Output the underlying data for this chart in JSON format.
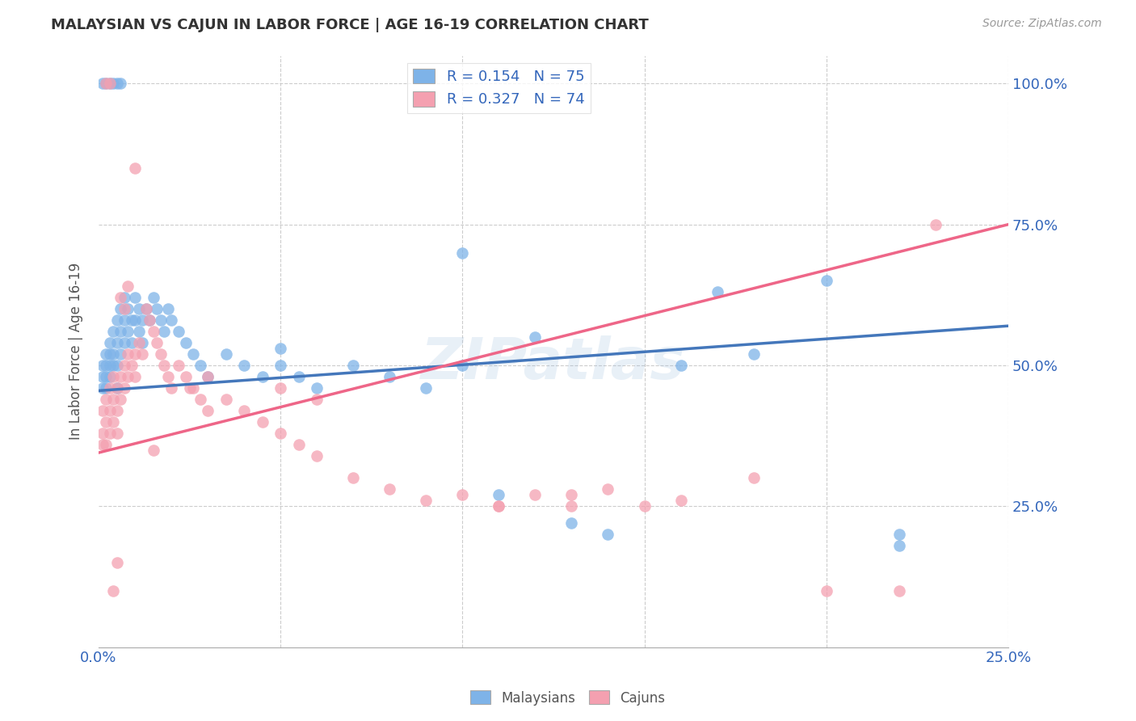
{
  "title": "MALAYSIAN VS CAJUN IN LABOR FORCE | AGE 16-19 CORRELATION CHART",
  "source": "Source: ZipAtlas.com",
  "ylabel": "In Labor Force | Age 16-19",
  "xlim": [
    0.0,
    0.25
  ],
  "ylim": [
    0.0,
    1.05
  ],
  "x_ticks": [
    0.0,
    0.05,
    0.1,
    0.15,
    0.2,
    0.25
  ],
  "y_ticks": [
    0.0,
    0.25,
    0.5,
    0.75,
    1.0
  ],
  "x_tick_labels": [
    "0.0%",
    "",
    "",
    "",
    "",
    "25.0%"
  ],
  "y_tick_labels_right": [
    "",
    "25.0%",
    "50.0%",
    "75.0%",
    "100.0%"
  ],
  "malaysian_R": 0.154,
  "malaysian_N": 75,
  "cajun_R": 0.327,
  "cajun_N": 74,
  "blue_color": "#7EB3E8",
  "pink_color": "#F4A0B0",
  "blue_line_color": "#4477BB",
  "pink_line_color": "#EE6688",
  "watermark": "ZIPatlas",
  "mal_x": [
    0.001,
    0.001,
    0.001,
    0.002,
    0.002,
    0.002,
    0.002,
    0.003,
    0.003,
    0.003,
    0.003,
    0.004,
    0.004,
    0.004,
    0.005,
    0.005,
    0.005,
    0.005,
    0.006,
    0.006,
    0.006,
    0.007,
    0.007,
    0.007,
    0.008,
    0.008,
    0.009,
    0.009,
    0.01,
    0.01,
    0.011,
    0.011,
    0.012,
    0.012,
    0.013,
    0.014,
    0.015,
    0.016,
    0.017,
    0.018,
    0.019,
    0.02,
    0.022,
    0.024,
    0.026,
    0.028,
    0.03,
    0.035,
    0.04,
    0.045,
    0.05,
    0.055,
    0.06,
    0.07,
    0.08,
    0.09,
    0.1,
    0.11,
    0.12,
    0.13,
    0.14,
    0.16,
    0.18,
    0.2,
    0.22,
    0.001,
    0.002,
    0.003,
    0.004,
    0.005,
    0.006,
    0.05,
    0.1,
    0.22,
    0.17
  ],
  "mal_y": [
    0.5,
    0.48,
    0.46,
    0.52,
    0.5,
    0.48,
    0.46,
    0.54,
    0.52,
    0.5,
    0.48,
    0.56,
    0.52,
    0.5,
    0.58,
    0.54,
    0.5,
    0.46,
    0.6,
    0.56,
    0.52,
    0.62,
    0.58,
    0.54,
    0.6,
    0.56,
    0.58,
    0.54,
    0.62,
    0.58,
    0.6,
    0.56,
    0.58,
    0.54,
    0.6,
    0.58,
    0.62,
    0.6,
    0.58,
    0.56,
    0.6,
    0.58,
    0.56,
    0.54,
    0.52,
    0.5,
    0.48,
    0.52,
    0.5,
    0.48,
    0.5,
    0.48,
    0.46,
    0.5,
    0.48,
    0.46,
    0.5,
    0.27,
    0.55,
    0.22,
    0.2,
    0.5,
    0.52,
    0.65,
    0.2,
    1.0,
    1.0,
    1.0,
    1.0,
    1.0,
    1.0,
    0.53,
    0.7,
    0.18,
    0.63
  ],
  "caj_x": [
    0.001,
    0.001,
    0.001,
    0.002,
    0.002,
    0.002,
    0.003,
    0.003,
    0.003,
    0.004,
    0.004,
    0.004,
    0.005,
    0.005,
    0.005,
    0.006,
    0.006,
    0.007,
    0.007,
    0.008,
    0.008,
    0.009,
    0.01,
    0.01,
    0.011,
    0.012,
    0.013,
    0.014,
    0.015,
    0.016,
    0.017,
    0.018,
    0.019,
    0.02,
    0.022,
    0.024,
    0.026,
    0.028,
    0.03,
    0.035,
    0.04,
    0.045,
    0.05,
    0.055,
    0.06,
    0.07,
    0.08,
    0.09,
    0.1,
    0.11,
    0.12,
    0.13,
    0.14,
    0.16,
    0.18,
    0.002,
    0.003,
    0.004,
    0.005,
    0.006,
    0.007,
    0.008,
    0.01,
    0.015,
    0.025,
    0.03,
    0.05,
    0.06,
    0.11,
    0.13,
    0.15,
    0.2,
    0.22,
    0.23
  ],
  "caj_y": [
    0.42,
    0.38,
    0.36,
    0.44,
    0.4,
    0.36,
    0.46,
    0.42,
    0.38,
    0.48,
    0.44,
    0.4,
    0.46,
    0.42,
    0.38,
    0.48,
    0.44,
    0.5,
    0.46,
    0.52,
    0.48,
    0.5,
    0.52,
    0.48,
    0.54,
    0.52,
    0.6,
    0.58,
    0.56,
    0.54,
    0.52,
    0.5,
    0.48,
    0.46,
    0.5,
    0.48,
    0.46,
    0.44,
    0.42,
    0.44,
    0.42,
    0.4,
    0.38,
    0.36,
    0.34,
    0.3,
    0.28,
    0.26,
    0.27,
    0.25,
    0.27,
    0.25,
    0.28,
    0.26,
    0.3,
    1.0,
    1.0,
    0.1,
    0.15,
    0.62,
    0.6,
    0.64,
    0.85,
    0.35,
    0.46,
    0.48,
    0.46,
    0.44,
    0.25,
    0.27,
    0.25,
    0.1,
    0.1,
    0.75
  ]
}
